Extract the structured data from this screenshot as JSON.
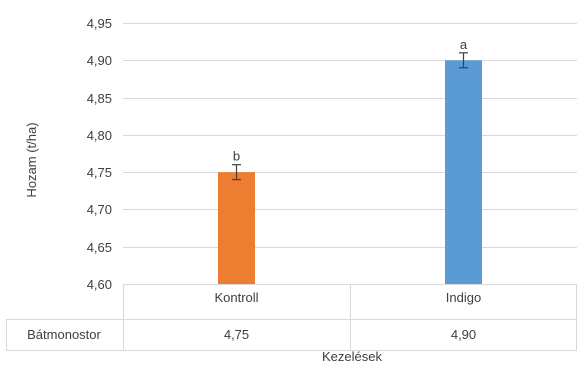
{
  "chart_data": {
    "type": "bar",
    "title": "",
    "xlabel": "Kezelések",
    "ylabel": "Hozam (t/ha)",
    "ylim": [
      4.6,
      4.95
    ],
    "yticks": [
      "4,60",
      "4,65",
      "4,70",
      "4,75",
      "4,80",
      "4,85",
      "4,90",
      "4,95"
    ],
    "categories": [
      "Kontroll",
      "Indigo"
    ],
    "series": [
      {
        "name": "Bátmonostor",
        "values": [
          4.75,
          4.9
        ],
        "value_labels": [
          "4,75",
          "4,90"
        ],
        "error": [
          0.01,
          0.01
        ],
        "significance": [
          "b",
          "a"
        ],
        "colors": [
          "#ED7D31",
          "#5B9BD5"
        ]
      }
    ],
    "grid": true,
    "legend": "data-table"
  }
}
